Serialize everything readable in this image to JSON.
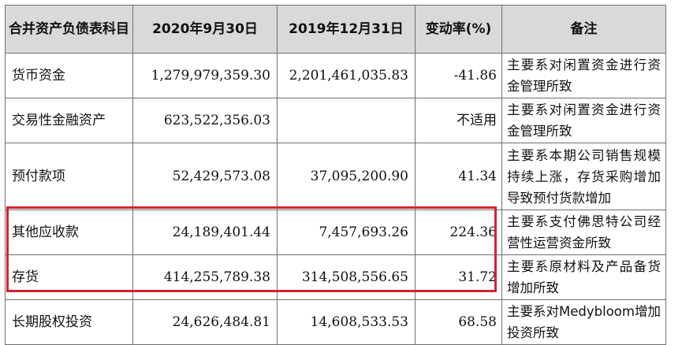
{
  "table": {
    "headers": {
      "subject": "合并资产负债表科目",
      "col_2020": "2020年9月30日",
      "col_2019": "2019年12月31日",
      "change_rate": "变动率(%)",
      "note": "备注"
    },
    "rows": [
      {
        "subject": "货币资金",
        "v2020": "1,279,979,359.30",
        "v2019": "2,201,461,035.83",
        "rate": "-41.86",
        "note": "主要系对闲置资金进行资金管理所致"
      },
      {
        "subject": "交易性金融资产",
        "v2020": "623,522,356.03",
        "v2019": "",
        "rate": "不适用",
        "note": "主要系对闲置资金进行资金管理所致"
      },
      {
        "subject": "预付款项",
        "v2020": "52,429,573.08",
        "v2019": "37,095,200.90",
        "rate": "41.34",
        "note": "主要系本期公司销售规模持续上涨，存货采购增加导致预付货款增加"
      },
      {
        "subject": "其他应收款",
        "v2020": "24,189,401.44",
        "v2019": "7,457,693.26",
        "rate": "224.36",
        "note": "主要系支付佛思特公司经营性运营资金所致"
      },
      {
        "subject": "存货",
        "v2020": "414,255,789.38",
        "v2019": "314,508,556.65",
        "rate": "31.72",
        "note": "主要系原材料及产品备货增加所致"
      },
      {
        "subject": "长期股权投资",
        "v2020": "24,626,484.81",
        "v2019": "14,608,533.53",
        "rate": "68.58",
        "note": "主要系对Medybloom增加投资所致"
      }
    ]
  },
  "highlight": {
    "color": "#d8212e",
    "rows": [
      "其他应收款",
      "存货"
    ]
  }
}
